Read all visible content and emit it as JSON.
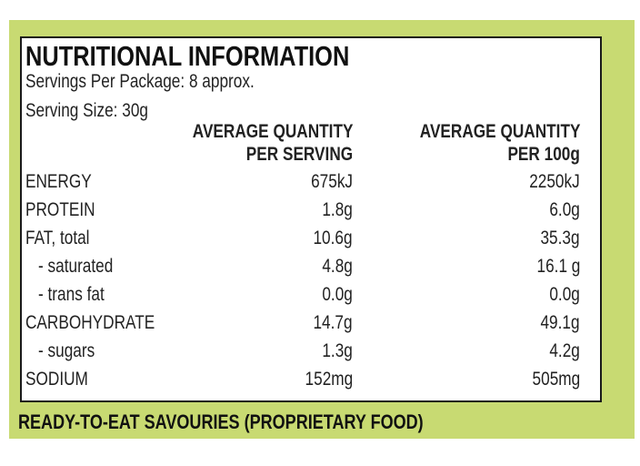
{
  "title": "NUTRITIONAL INFORMATION",
  "servings_per_package": "Servings Per Package: 8 approx.",
  "serving_size": "Serving Size: 30g",
  "table": {
    "columns": [
      [
        "AVERAGE QUANTITY",
        "PER SERVING"
      ],
      [
        "AVERAGE QUANTITY",
        "PER 100g"
      ]
    ],
    "rows": [
      [
        "ENERGY",
        "675kJ",
        "2250kJ"
      ],
      [
        "PROTEIN",
        "1.8g",
        "6.0g"
      ],
      [
        "FAT, total",
        "10.6g",
        "35.3g"
      ],
      [
        "- saturated",
        "4.8g",
        "16.1 g"
      ],
      [
        "- trans fat",
        "0.0g",
        "0.0g"
      ],
      [
        "CARBOHYDRATE",
        "14.7g",
        "49.1g"
      ],
      [
        "- sugars",
        "1.3g",
        "4.2g"
      ],
      [
        "SODIUM",
        "152mg",
        "505mg"
      ]
    ]
  },
  "footer": "READY-TO-EAT SAVOURIES (PROPRIETARY FOOD)"
}
